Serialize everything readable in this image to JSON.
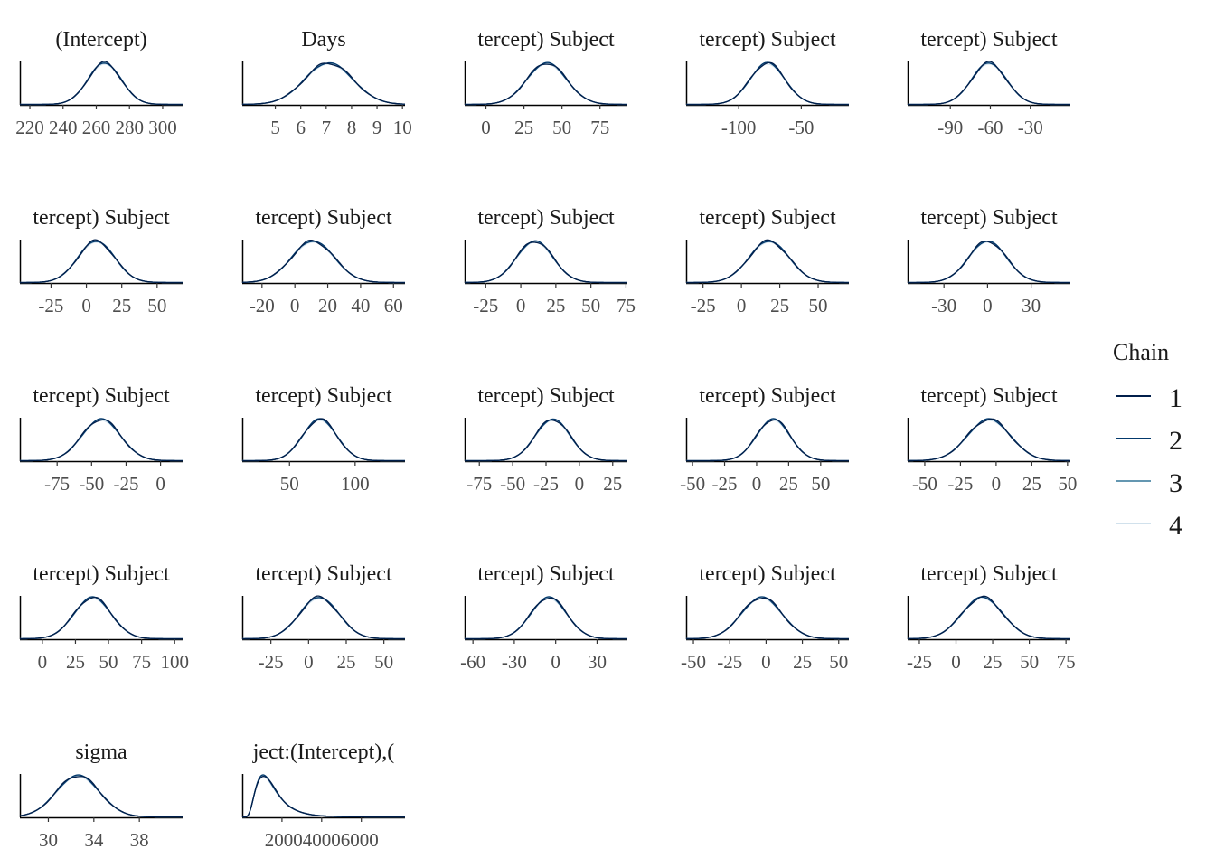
{
  "chart_data": {
    "type": "line",
    "legend": {
      "title": "Chain",
      "placement": "right",
      "entries": [
        {
          "label": "1",
          "color": "#011f4b"
        },
        {
          "label": "2",
          "color": "#03396c"
        },
        {
          "label": "3",
          "color": "#6497b1"
        },
        {
          "label": "4",
          "color": "#d1e1ec"
        }
      ]
    },
    "panels": [
      {
        "title": "(Intercept)",
        "xlim": [
          214,
          312
        ],
        "ticks": [
          220,
          240,
          260,
          280,
          300
        ],
        "tick_labels": [
          "220",
          "240",
          "260",
          "280",
          "300"
        ],
        "density": {
          "shape": "normal",
          "mean": 265,
          "sd": 10
        }
      },
      {
        "title": "Days",
        "xlim": [
          3.7,
          10.1
        ],
        "ticks": [
          5,
          6,
          7,
          8,
          9,
          10
        ],
        "tick_labels": [
          "5",
          "6",
          "7",
          "8",
          "9",
          "10"
        ],
        "density": {
          "shape": "normal",
          "mean": 7.1,
          "sd": 0.95
        }
      },
      {
        "title": "tercept) Subject",
        "xlim": [
          -14,
          93
        ],
        "ticks": [
          0,
          25,
          50,
          75
        ],
        "tick_labels": [
          "0",
          "25",
          "50",
          "75"
        ],
        "density": {
          "shape": "normal",
          "mean": 40,
          "sd": 13
        }
      },
      {
        "title": "tercept) Subject",
        "xlim": [
          -142,
          -12
        ],
        "ticks": [
          -100,
          -50
        ],
        "tick_labels": [
          "-100",
          "-50"
        ],
        "density": {
          "shape": "normal",
          "mean": -77,
          "sd": 14
        }
      },
      {
        "title": "tercept) Subject",
        "xlim": [
          -122,
          0
        ],
        "ticks": [
          -90,
          -60,
          -30
        ],
        "tick_labels": [
          "-90",
          "-60",
          "-30"
        ],
        "density": {
          "shape": "normal",
          "mean": -61,
          "sd": 13
        }
      },
      {
        "title": "tercept) Subject",
        "xlim": [
          -47,
          68
        ],
        "ticks": [
          -25,
          0,
          25,
          50
        ],
        "tick_labels": [
          "-25",
          "0",
          "25",
          "50"
        ],
        "density": {
          "shape": "normal",
          "mean": 7,
          "sd": 13
        }
      },
      {
        "title": "tercept) Subject",
        "xlim": [
          -32,
          67
        ],
        "ticks": [
          -20,
          0,
          20,
          40,
          60
        ],
        "tick_labels": [
          "-20",
          "0",
          "20",
          "40",
          "60"
        ],
        "density": {
          "shape": "normal",
          "mean": 11,
          "sd": 13
        }
      },
      {
        "title": "tercept) Subject",
        "xlim": [
          -40,
          76
        ],
        "ticks": [
          -25,
          0,
          25,
          50,
          75
        ],
        "tick_labels": [
          "-25",
          "0",
          "25",
          "50",
          "75"
        ],
        "density": {
          "shape": "normal",
          "mean": 10,
          "sd": 13
        }
      },
      {
        "title": "tercept) Subject",
        "xlim": [
          -36,
          70
        ],
        "ticks": [
          -25,
          0,
          25,
          50
        ],
        "tick_labels": [
          "-25",
          "0",
          "25",
          "50"
        ],
        "density": {
          "shape": "normal",
          "mean": 18,
          "sd": 13
        }
      },
      {
        "title": "tercept) Subject",
        "xlim": [
          -55,
          57
        ],
        "ticks": [
          -30,
          0,
          30
        ],
        "tick_labels": [
          "-30",
          "0",
          "30"
        ],
        "density": {
          "shape": "normal",
          "mean": 0,
          "sd": 13
        }
      },
      {
        "title": "tercept) Subject",
        "xlim": [
          -102,
          16
        ],
        "ticks": [
          -75,
          -50,
          -25,
          0
        ],
        "tick_labels": [
          "-75",
          "-50",
          "-25",
          "0"
        ],
        "density": {
          "shape": "normal",
          "mean": -43,
          "sd": 14
        }
      },
      {
        "title": "tercept) Subject",
        "xlim": [
          14,
          138
        ],
        "ticks": [
          50,
          100
        ],
        "tick_labels": [
          "50",
          "100"
        ],
        "density": {
          "shape": "normal",
          "mean": 73,
          "sd": 13
        }
      },
      {
        "title": "tercept) Subject",
        "xlim": [
          -86,
          36
        ],
        "ticks": [
          -75,
          -50,
          -25,
          0,
          25
        ],
        "tick_labels": [
          "-75",
          "-50",
          "-25",
          "0",
          "25"
        ],
        "density": {
          "shape": "normal",
          "mean": -20,
          "sd": 13
        }
      },
      {
        "title": "tercept) Subject",
        "xlim": [
          -55,
          72
        ],
        "ticks": [
          -50,
          -25,
          0,
          25,
          50
        ],
        "tick_labels": [
          "-50",
          "-25",
          "0",
          "25",
          "50"
        ],
        "density": {
          "shape": "normal",
          "mean": 13,
          "sd": 13
        }
      },
      {
        "title": "tercept) Subject",
        "xlim": [
          -62,
          52
        ],
        "ticks": [
          -50,
          -25,
          0,
          25,
          50
        ],
        "tick_labels": [
          "-50",
          "-25",
          "0",
          "25",
          "50"
        ],
        "density": {
          "shape": "normal",
          "mean": -5,
          "sd": 15
        }
      },
      {
        "title": "tercept) Subject",
        "xlim": [
          -17,
          106
        ],
        "ticks": [
          0,
          25,
          50,
          75,
          100
        ],
        "tick_labels": [
          "0",
          "25",
          "50",
          "75",
          "100"
        ],
        "density": {
          "shape": "normal",
          "mean": 38,
          "sd": 14
        }
      },
      {
        "title": "tercept) Subject",
        "xlim": [
          -44,
          64
        ],
        "ticks": [
          -25,
          0,
          25,
          50
        ],
        "tick_labels": [
          "-25",
          "0",
          "25",
          "50"
        ],
        "density": {
          "shape": "normal",
          "mean": 7,
          "sd": 13
        }
      },
      {
        "title": "tercept) Subject",
        "xlim": [
          -66,
          52
        ],
        "ticks": [
          -60,
          -30,
          0,
          30
        ],
        "tick_labels": [
          "-60",
          "-30",
          "0",
          "30"
        ],
        "density": {
          "shape": "normal",
          "mean": -5,
          "sd": 13
        }
      },
      {
        "title": "tercept) Subject",
        "xlim": [
          -55,
          57
        ],
        "ticks": [
          -50,
          -25,
          0,
          25,
          50
        ],
        "tick_labels": [
          "-50",
          "-25",
          "0",
          "25",
          "50"
        ],
        "density": {
          "shape": "normal",
          "mean": -3,
          "sd": 14
        }
      },
      {
        "title": "tercept) Subject",
        "xlim": [
          -33,
          78
        ],
        "ticks": [
          -25,
          0,
          25,
          50,
          75
        ],
        "tick_labels": [
          "-25",
          "0",
          "25",
          "50",
          "75"
        ],
        "density": {
          "shape": "normal",
          "mean": 18,
          "sd": 14
        }
      },
      {
        "title": "sigma",
        "xlim": [
          27.5,
          41.8
        ],
        "ticks": [
          30,
          34,
          38
        ],
        "tick_labels": [
          "30",
          "34",
          "38"
        ],
        "density": {
          "shape": "normal",
          "mean": 32.6,
          "sd": 1.9
        }
      },
      {
        "title": "ject:(Intercept),(",
        "xlim": [
          0,
          8200
        ],
        "ticks": [
          2000,
          4000,
          6000
        ],
        "tick_labels": [
          "2000",
          "4000",
          "6000"
        ],
        "tick_text": "200040006000",
        "density": {
          "shape": "lognormal",
          "mu": 7.2,
          "sigma": 0.5,
          "xmin": 0
        }
      }
    ]
  }
}
